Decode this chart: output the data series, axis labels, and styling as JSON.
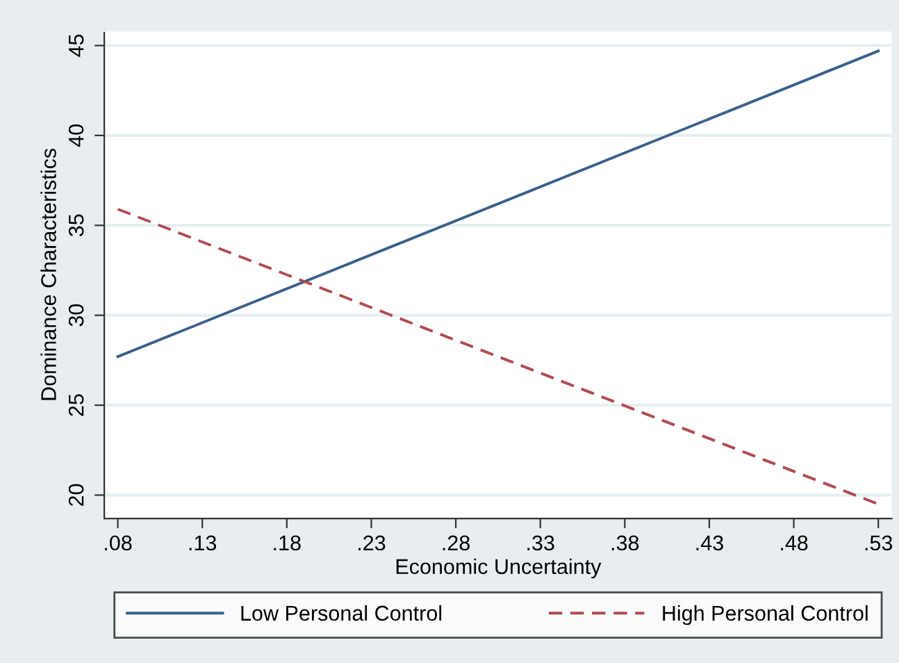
{
  "chart_data": {
    "type": "line",
    "xlabel": "Economic Uncertainty",
    "ylabel": "Dominance Characteristics",
    "x": [
      0.08,
      0.53
    ],
    "series": [
      {
        "name": "Low Personal Control",
        "color": "#3a5f8a",
        "values": [
          27.7,
          44.7
        ],
        "line_style": "solid"
      },
      {
        "name": "High Personal Control",
        "color": "#b04a52",
        "values": [
          35.9,
          19.5
        ],
        "line_style": "dashed"
      }
    ],
    "xlim": [
      0.072,
      0.538
    ],
    "ylim": [
      18.7,
      45.8
    ],
    "xticks": [
      {
        "value": 0.08,
        "label": ".08"
      },
      {
        "value": 0.13,
        "label": ".13"
      },
      {
        "value": 0.18,
        "label": ".18"
      },
      {
        "value": 0.23,
        "label": ".23"
      },
      {
        "value": 0.28,
        "label": ".28"
      },
      {
        "value": 0.33,
        "label": ".33"
      },
      {
        "value": 0.38,
        "label": ".38"
      },
      {
        "value": 0.43,
        "label": ".43"
      },
      {
        "value": 0.48,
        "label": ".48"
      },
      {
        "value": 0.53,
        "label": ".53"
      }
    ],
    "yticks": [
      20,
      25,
      30,
      35,
      40,
      45
    ],
    "grid": "y",
    "legend": "bottom",
    "marker": "none"
  }
}
